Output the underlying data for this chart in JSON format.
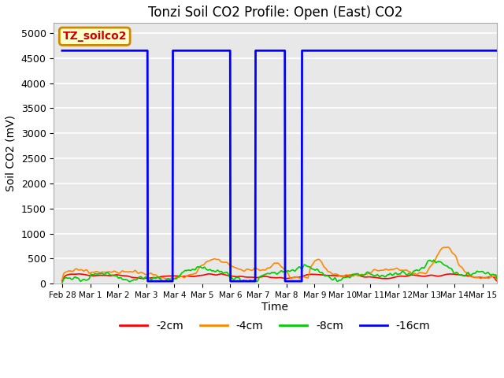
{
  "title": "Tonzi Soil CO2 Profile: Open (East) CO2",
  "ylabel": "Soil CO2 (mV)",
  "xlabel": "Time",
  "ylim": [
    0,
    5200
  ],
  "xlim": [
    -0.3,
    15.5
  ],
  "bg_color": "#e8e8e8",
  "grid_color": "#ffffff",
  "label_box_text": "TZ_soilco2",
  "label_box_facecolor": "#ffffcc",
  "label_box_edgecolor": "#cc8800",
  "label_box_textcolor": "#cc0000",
  "xtick_labels": [
    "Feb 28",
    "Mar 1",
    "Mar 2",
    "Mar 3",
    "Mar 4",
    "Mar 5",
    "Mar 6",
    "Mar 7",
    "Mar 8",
    "Mar 9",
    "Mar 10",
    "Mar 11",
    "Mar 12",
    "Mar 13",
    "Mar 14",
    "Mar 15"
  ],
  "xtick_positions": [
    0,
    1,
    2,
    3,
    4,
    5,
    6,
    7,
    8,
    9,
    10,
    11,
    12,
    13,
    14,
    15
  ],
  "ytick_positions": [
    0,
    500,
    1000,
    1500,
    2000,
    2500,
    3000,
    3500,
    4000,
    4500,
    5000
  ],
  "legend_labels": [
    "-2cm",
    "-4cm",
    "-8cm",
    "-16cm"
  ],
  "legend_colors": [
    "#ff0000",
    "#ff8800",
    "#00cc00",
    "#0000ff"
  ],
  "line_width": 1.2,
  "blue_line_base": 4650,
  "blue_drop1_start": 3.05,
  "blue_drop1_end": 3.95,
  "blue_drop2_start": 6.0,
  "blue_drop2_end": 6.9,
  "blue_drop3_start": 7.95,
  "blue_drop3_end": 8.55
}
